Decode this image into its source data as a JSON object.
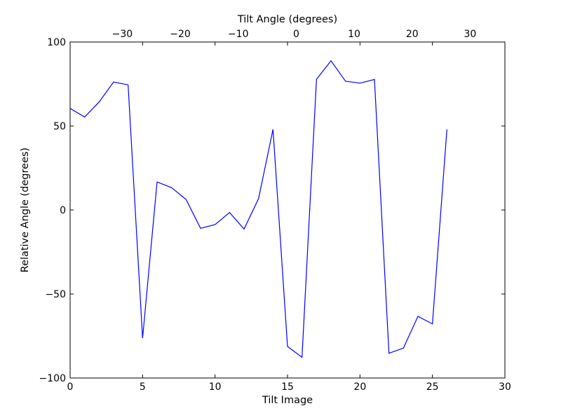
{
  "chart_data": {
    "type": "line",
    "xlabel": "Tilt Image",
    "ylabel": "Relative Angle (degrees)",
    "top_xlabel": "Tilt Angle (degrees)",
    "xlim": [
      0,
      30
    ],
    "ylim": [
      -100,
      100
    ],
    "top_xlim": [
      -39,
      36
    ],
    "x_ticks": [
      0,
      5,
      10,
      15,
      20,
      25,
      30
    ],
    "x_tick_labels": [
      "0",
      "5",
      "10",
      "15",
      "20",
      "25",
      "30"
    ],
    "y_ticks": [
      -100,
      -50,
      0,
      50,
      100
    ],
    "y_tick_labels": [
      "−100",
      "−50",
      "0",
      "50",
      "100"
    ],
    "top_ticks": [
      -30,
      -20,
      -10,
      0,
      10,
      20,
      30
    ],
    "top_tick_labels": [
      "−30",
      "−20",
      "−10",
      "0",
      "10",
      "20",
      "30"
    ],
    "grid": false,
    "line_color": "#0000ff",
    "series": [
      {
        "x": [
          0,
          1,
          2,
          3,
          4,
          5,
          6,
          7,
          8,
          9,
          10,
          11,
          12,
          13,
          14,
          15,
          16,
          17,
          18,
          19,
          20,
          21,
          22,
          23,
          24,
          25,
          26
        ],
        "values": [
          60.5,
          55.3,
          64.3,
          76.2,
          74.5,
          -76.3,
          16.7,
          13.3,
          6.3,
          -10.9,
          -8.7,
          -1.5,
          -11.3,
          6.7,
          48,
          -81.2,
          -87.7,
          77.8,
          88.8,
          76.7,
          75.5,
          77.7,
          -85.3,
          -82.2,
          -63.3,
          -67.8,
          48
        ]
      }
    ]
  }
}
